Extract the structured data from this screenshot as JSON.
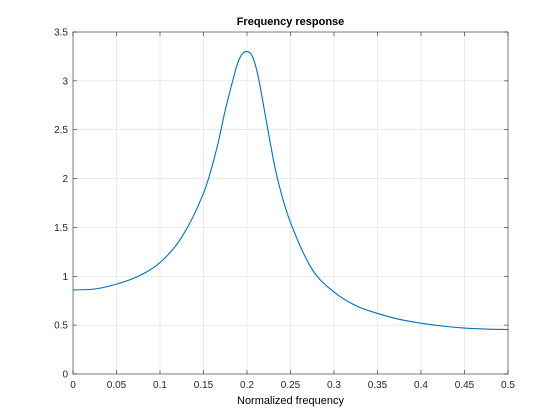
{
  "chart_data": {
    "type": "line",
    "title": "Frequency response",
    "xlabel": "Normalized frequency",
    "ylabel": "",
    "xlim": [
      0,
      0.5
    ],
    "ylim": [
      0,
      3.5
    ],
    "grid": true,
    "x_ticks": [
      "0",
      "0.05",
      "0.1",
      "0.15",
      "0.2",
      "0.25",
      "0.3",
      "0.35",
      "0.4",
      "0.45",
      "0.5"
    ],
    "y_ticks": [
      "0",
      "0.5",
      "1",
      "1.5",
      "2",
      "2.5",
      "3",
      "3.5"
    ],
    "series": [
      {
        "color": "#0072bd",
        "x": [
          0,
          0.025,
          0.05,
          0.075,
          0.1,
          0.125,
          0.15,
          0.165,
          0.175,
          0.185,
          0.19,
          0.195,
          0.2,
          0.205,
          0.21,
          0.215,
          0.225,
          0.235,
          0.25,
          0.275,
          0.3,
          0.325,
          0.35,
          0.375,
          0.4,
          0.425,
          0.45,
          0.475,
          0.5
        ],
        "y": [
          0.86,
          0.87,
          0.92,
          1.0,
          1.14,
          1.4,
          1.85,
          2.3,
          2.7,
          3.05,
          3.2,
          3.28,
          3.3,
          3.27,
          3.15,
          2.95,
          2.45,
          2.0,
          1.55,
          1.07,
          0.84,
          0.7,
          0.62,
          0.56,
          0.52,
          0.49,
          0.47,
          0.46,
          0.455
        ]
      }
    ]
  }
}
